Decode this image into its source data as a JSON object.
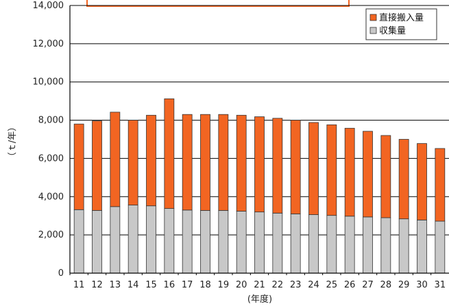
{
  "chart_data": {
    "type": "bar",
    "stacked": true,
    "categories": [
      "11",
      "12",
      "13",
      "14",
      "15",
      "16",
      "17",
      "18",
      "19",
      "20",
      "21",
      "22",
      "23",
      "24",
      "25",
      "26",
      "27",
      "28",
      "29",
      "30",
      "31"
    ],
    "series": [
      {
        "name": "収集量",
        "color": "#c8c8c8",
        "values": [
          3320,
          3280,
          3480,
          3560,
          3520,
          3380,
          3300,
          3280,
          3280,
          3240,
          3200,
          3140,
          3100,
          3060,
          3020,
          2980,
          2940,
          2900,
          2840,
          2780,
          2720
        ]
      },
      {
        "name": "直接搬入量",
        "color": "#f26522",
        "values": [
          4480,
          4680,
          4940,
          4440,
          4740,
          5740,
          5000,
          5020,
          5020,
          5020,
          4980,
          4960,
          4900,
          4820,
          4740,
          4600,
          4480,
          4300,
          4160,
          4000,
          3800
        ]
      }
    ],
    "xlabel": "(年度)",
    "ylabel": "（ｔ/年）",
    "ylim": [
      0,
      14000
    ],
    "yticks": [
      "0",
      "2,000",
      "4,000",
      "6,000",
      "8,000",
      "10,000",
      "12,000",
      "14,000"
    ],
    "grid": true,
    "legend_position": "top-right"
  },
  "colors": {
    "accent_orange": "#f26522",
    "gray_bar": "#c8c8c8"
  }
}
